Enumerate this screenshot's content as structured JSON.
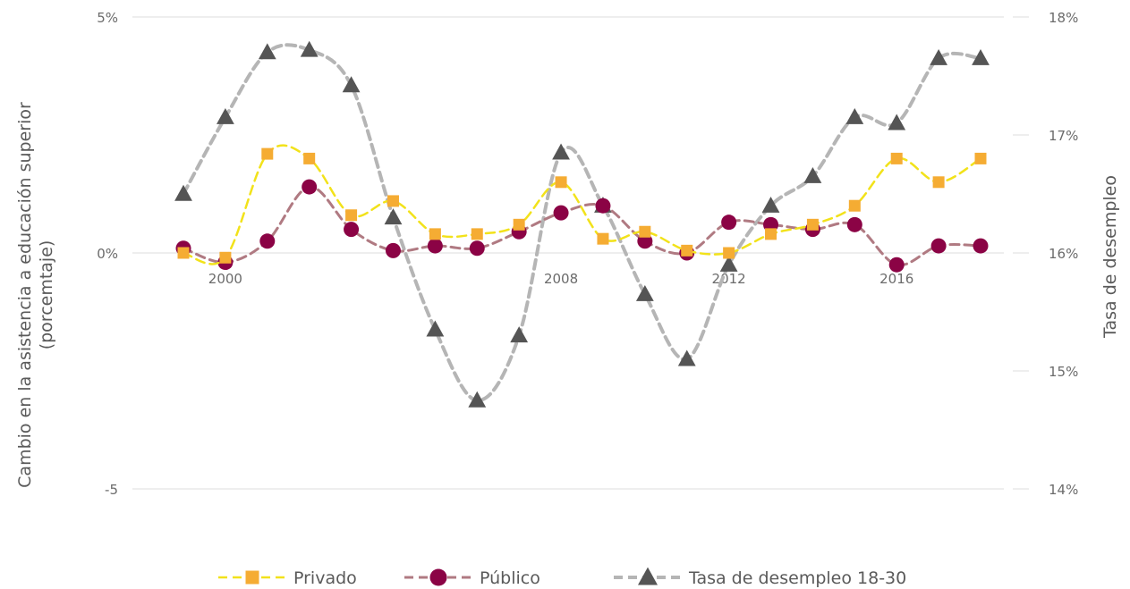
{
  "chart_data": {
    "type": "line",
    "y_axis": {
      "label": "Cambio en la asistencia a educación superior (porcemtaje)",
      "ticks": [
        "5%",
        "0%",
        "-5"
      ],
      "range": [
        -5,
        5
      ],
      "tick_values": [
        5,
        0,
        -5
      ]
    },
    "y2_axis": {
      "label": "Tasa de desempleo",
      "ticks": [
        "18%",
        "17%",
        "16%",
        "15%",
        "14%"
      ],
      "range": [
        14,
        18
      ],
      "tick_values": [
        18,
        17,
        16,
        15,
        14
      ]
    },
    "x_axis": {
      "ticks": [
        "2000",
        "2008",
        "2012",
        "2016"
      ],
      "tick_values": [
        2000,
        2008,
        2012,
        2016
      ]
    },
    "x": [
      1999,
      2000,
      2001,
      2002,
      2003,
      2004,
      2005,
      2006,
      2007,
      2008,
      2009,
      2010,
      2011,
      2012,
      2013,
      2014,
      2015,
      2016,
      2017,
      2018
    ],
    "series": [
      {
        "name": "Privado",
        "axis": "left",
        "color": "#f2e21a",
        "marker_color": "#f5ac33",
        "marker": "square",
        "values": [
          0.0,
          -0.1,
          2.1,
          2.0,
          0.8,
          1.1,
          0.4,
          0.4,
          0.6,
          1.5,
          0.3,
          0.45,
          0.05,
          0.0,
          0.4,
          0.6,
          1.0,
          2.0,
          1.5,
          2.0
        ]
      },
      {
        "name": "Público",
        "axis": "left",
        "color": "#b07a82",
        "marker_color": "#8b0345",
        "marker": "circle",
        "values": [
          0.1,
          -0.2,
          0.25,
          1.4,
          0.5,
          0.05,
          0.15,
          0.1,
          0.45,
          0.85,
          1.0,
          0.25,
          0.0,
          0.65,
          0.6,
          0.5,
          0.6,
          -0.25,
          0.15,
          0.15
        ]
      },
      {
        "name": "Tasa de desempleo 18-30",
        "axis": "right",
        "color": "#b5b5b5",
        "marker_color": "#555555",
        "marker": "triangle",
        "values": [
          16.5,
          17.15,
          17.7,
          17.72,
          17.42,
          16.3,
          15.35,
          14.75,
          15.3,
          16.85,
          16.4,
          15.65,
          15.1,
          15.9,
          16.4,
          16.65,
          17.15,
          17.1,
          17.65,
          17.65
        ]
      }
    ],
    "grid": true,
    "legend_position": "bottom"
  }
}
